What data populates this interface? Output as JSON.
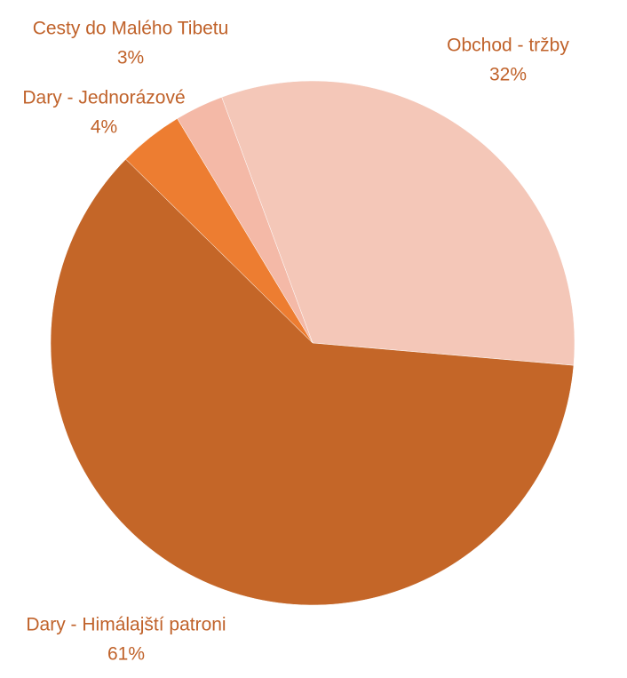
{
  "chart_data": {
    "type": "pie",
    "categories": [
      "Obchod - tržby",
      "Dary - Himálajští patroni",
      "Dary - Jednorázové",
      "Cesty do Malého Tibetu"
    ],
    "values": [
      32,
      61,
      4,
      3
    ],
    "value_labels": [
      "32%",
      "61%",
      "4%",
      "3%"
    ],
    "colors": [
      "#f4c7b8",
      "#c46628",
      "#ed7d31",
      "#f4b9a7"
    ],
    "label_color": "#c0622a"
  }
}
